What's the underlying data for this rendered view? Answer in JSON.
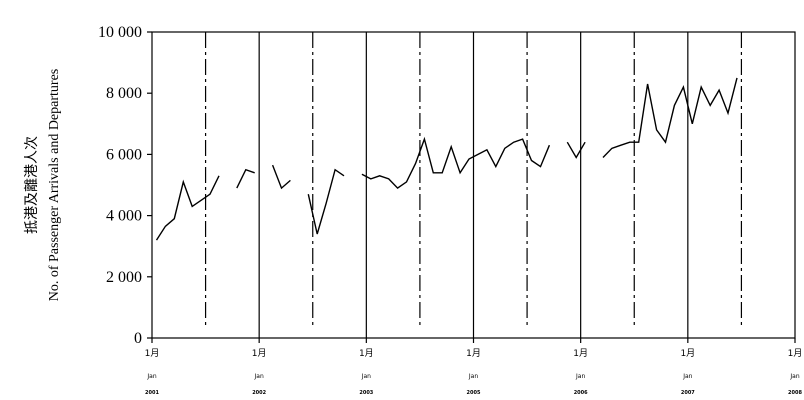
{
  "chart_data": {
    "type": "line",
    "title": "",
    "ylabel_zh": "抵港及離港人次",
    "ylabel_en": "No. of Passenger Arrivals and Departures",
    "xlabel": "",
    "ylim": [
      0,
      10000
    ],
    "yticks": [
      0,
      2000,
      4000,
      6000,
      8000,
      10000
    ],
    "ytick_labels": [
      "0",
      "2 000",
      "4 000",
      "6 000",
      "8 000",
      "10 000"
    ],
    "grid": "vertical lines only",
    "legend": "none",
    "x_year_ticks": [
      {
        "line1": "1月",
        "line2": "Jan",
        "line3": "2001"
      },
      {
        "line1": "1月",
        "line2": "Jan",
        "line3": "2002"
      },
      {
        "line1": "1月",
        "line2": "Jan",
        "line3": "2003"
      },
      {
        "line1": "1月",
        "line2": "Jan",
        "line3": "2005"
      },
      {
        "line1": "1月",
        "line2": "Jan",
        "line3": "2006"
      },
      {
        "line1": "1月",
        "line2": "Jan",
        "line3": "2007"
      },
      {
        "line1": "1月",
        "line2": "Jan",
        "line3": "2008"
      }
    ],
    "series": [
      {
        "color": "#000000",
        "values": [
          3200,
          3650,
          3900,
          5100,
          4300,
          4500,
          4700,
          5300,
          null,
          4900,
          5500,
          5400,
          null,
          5650,
          4900,
          5150,
          null,
          4700,
          3400,
          4400,
          5500,
          5300,
          null,
          5350,
          5200,
          5300,
          5200,
          4900,
          5100,
          5700,
          6500,
          5400,
          5400,
          6250,
          5400,
          5850,
          6000,
          6150,
          5600,
          6200,
          6400,
          6500,
          5800,
          5600,
          6300,
          null,
          6400,
          5900,
          6400,
          null,
          5900,
          6200,
          6300,
          6400,
          6400,
          8300,
          6800,
          6400,
          7600,
          8200,
          7000,
          8200,
          7600,
          8100,
          7350,
          8500
        ]
      }
    ]
  }
}
